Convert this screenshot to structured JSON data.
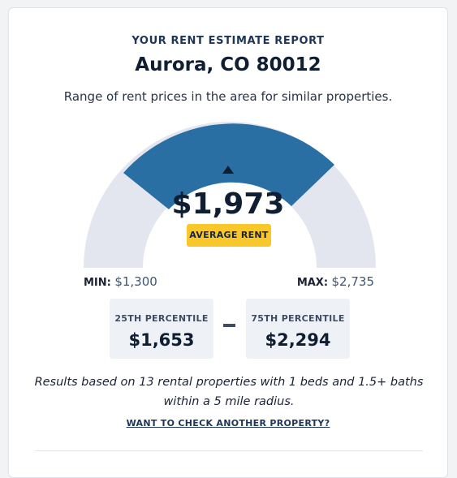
{
  "report": {
    "eyebrow": "YOUR RENT ESTIMATE REPORT",
    "title": "Aurora, CO 80012",
    "subtitle": "Range of rent prices in the area for similar properties."
  },
  "gauge": {
    "average_value": "$1,973",
    "average_label": "AVERAGE RENT",
    "min_label": "MIN:",
    "min_value": "$1,300",
    "max_label": "MAX:",
    "max_value": "$2,735",
    "colors": {
      "track": "#e3e6ee",
      "highlight": "#2a6fa3"
    }
  },
  "percentiles": {
    "p25_label": "25TH PERCENTILE",
    "p25_value": "$1,653",
    "p75_label": "75TH PERCENTILE",
    "p75_value": "$2,294",
    "separator": "–"
  },
  "note": "Results based on 13 rental properties with 1 beds and 1.5+ baths within a 5 mile radius.",
  "link": {
    "label": "WANT TO CHECK ANOTHER PROPERTY?"
  }
}
